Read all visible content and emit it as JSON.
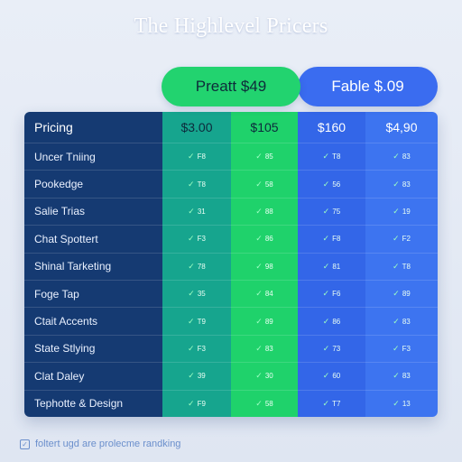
{
  "title": "The Highlevel Pricers",
  "plans": {
    "green_label": "Preatt $49",
    "blue_label": "Fable $.09"
  },
  "table": {
    "header": {
      "label": "Pricing",
      "prices": [
        "$3.00",
        "$105",
        "$160",
        "$4,90"
      ]
    },
    "rows": [
      {
        "label": "Uncer Tniing",
        "values": [
          "F8",
          "85",
          "T8",
          "83"
        ]
      },
      {
        "label": "Pookedge",
        "values": [
          "T8",
          "58",
          "56",
          "83"
        ]
      },
      {
        "label": "Salie Trias",
        "values": [
          "31",
          "88",
          "75",
          "19"
        ]
      },
      {
        "label": "Chat Spottert",
        "values": [
          "F3",
          "86",
          "F8",
          "F2"
        ]
      },
      {
        "label": "Shinal Tarketing",
        "values": [
          "78",
          "98",
          "81",
          "T8"
        ]
      },
      {
        "label": "Foge Tap",
        "values": [
          "35",
          "84",
          "F6",
          "89"
        ]
      },
      {
        "label": "Ctait Accents",
        "values": [
          "T9",
          "89",
          "86",
          "83"
        ]
      },
      {
        "label": "State Stlying",
        "values": [
          "F3",
          "83",
          "73",
          "F3"
        ]
      },
      {
        "label": "Clat Daley",
        "values": [
          "39",
          "30",
          "60",
          "83"
        ]
      },
      {
        "label": "Tephotte & Design",
        "values": [
          "F9",
          "58",
          "T7",
          "13"
        ]
      }
    ]
  },
  "footer": {
    "text": "foltert ugd are prolecme randking"
  },
  "colors": {
    "label_col": "#153a72",
    "col1": "#16a58e",
    "col2": "#1fd26b",
    "col3": "#3366e8",
    "col4": "#3d74f0"
  }
}
